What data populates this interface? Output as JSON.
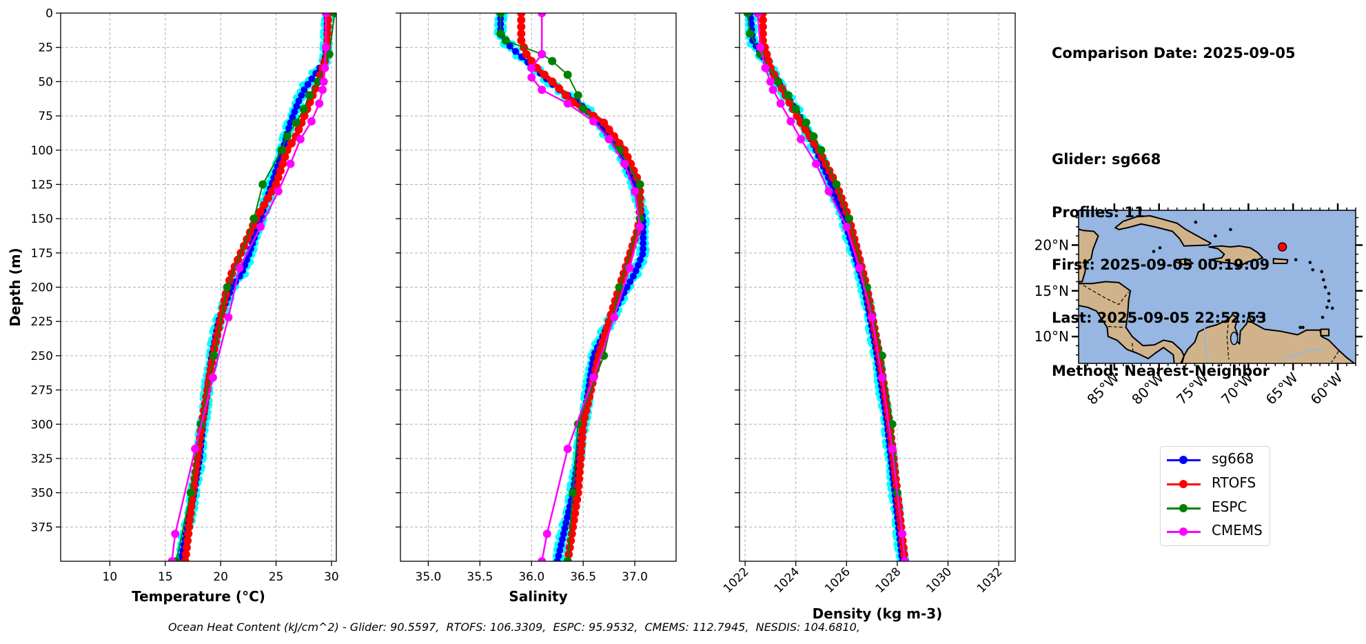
{
  "info": {
    "comparison_date": "Comparison Date: 2025-09-05",
    "glider": "Glider: sg668",
    "profiles": "Profiles: 11",
    "first": "First: 2025-09-05 00:19:09",
    "last": "Last: 2025-09-05 22:52:53",
    "method": "Method: Nearest-Neighbor"
  },
  "legend": [
    {
      "label": "sg668",
      "color": "#0000ff"
    },
    {
      "label": "RTOFS",
      "color": "#ff0000"
    },
    {
      "label": "ESPC",
      "color": "#008000"
    },
    {
      "label": "CMEMS",
      "color": "#ff00ff"
    }
  ],
  "footer": "Ocean Heat Content (kJ/cm^2) - Glider: 90.5597,  RTOFS: 106.3309,  ESPC: 95.9532,  CMEMS: 112.7945,  NESDIS: 104.6810,",
  "chart_data": [
    {
      "type": "line",
      "xlabel": "Temperature (°C)",
      "ylabel": "Depth (m)",
      "xlim": [
        5.56,
        30.44
      ],
      "ylim": [
        400,
        0
      ],
      "xticks": [
        "10",
        "15",
        "20",
        "25",
        "30"
      ],
      "yticks": [
        "0",
        "25",
        "50",
        "75",
        "100",
        "125",
        "150",
        "175",
        "200",
        "225",
        "250",
        "275",
        "300",
        "325",
        "350",
        "375"
      ],
      "grid": true,
      "xtick_rotation": 0,
      "series": [
        {
          "name": "sg668",
          "color": "#0000ff",
          "depth": [
            0,
            20,
            35,
            45,
            55,
            65,
            80,
            100,
            125,
            150,
            175,
            190,
            200,
            225,
            250,
            275,
            300,
            325,
            350,
            375,
            400
          ],
          "values": [
            29.6,
            29.6,
            29.4,
            28.5,
            27.6,
            27.0,
            26.3,
            25.6,
            24.6,
            23.6,
            22.6,
            21.9,
            21.0,
            19.8,
            19.2,
            18.8,
            18.4,
            18.1,
            17.6,
            17.0,
            16.4
          ]
        },
        {
          "name": "RTOFS",
          "color": "#ff0000",
          "depth": [
            0,
            30,
            50,
            70,
            90,
            100,
            125,
            150,
            190,
            200,
            250,
            300,
            350,
            400
          ],
          "values": [
            29.7,
            29.6,
            28.8,
            27.8,
            26.8,
            26.0,
            25.0,
            23.2,
            21.0,
            20.6,
            19.3,
            18.3,
            17.5,
            16.8
          ]
        },
        {
          "name": "ESPC",
          "color": "#008000",
          "depth": [
            0,
            30,
            50,
            60,
            70,
            80,
            90,
            100,
            125,
            150,
            200,
            250,
            300,
            350,
            400
          ],
          "values": [
            30.3,
            29.8,
            28.8,
            28.0,
            27.5,
            26.8,
            26.0,
            25.5,
            23.8,
            23.0,
            20.6,
            19.4,
            18.2,
            17.3,
            16.0
          ]
        },
        {
          "name": "CMEMS",
          "color": "#ff00ff",
          "depth": [
            0,
            25,
            40,
            50,
            56,
            66,
            79,
            92,
            110,
            130,
            156,
            186,
            222,
            266,
            318,
            380,
            400
          ],
          "values": [
            29.5,
            29.5,
            29.4,
            29.3,
            29.2,
            28.9,
            28.2,
            27.2,
            26.3,
            25.2,
            23.6,
            21.7,
            20.7,
            19.3,
            17.7,
            15.9,
            15.6
          ]
        }
      ]
    },
    {
      "type": "line",
      "xlabel": "Salinity",
      "ylabel": "",
      "xlim": [
        34.73,
        37.4
      ],
      "ylim": [
        400,
        0
      ],
      "xticks": [
        "35.0",
        "35.5",
        "36.0",
        "36.5",
        "37.0"
      ],
      "yticks": [],
      "grid": true,
      "xtick_rotation": 0,
      "series": [
        {
          "name": "sg668",
          "color": "#0000ff",
          "depth": [
            0,
            15,
            25,
            35,
            45,
            55,
            65,
            80,
            100,
            125,
            150,
            175,
            190,
            210,
            250,
            300,
            350,
            400
          ],
          "values": [
            35.7,
            35.7,
            35.8,
            35.95,
            36.1,
            36.25,
            36.45,
            36.65,
            36.85,
            37.0,
            37.08,
            37.08,
            37.0,
            36.85,
            36.6,
            36.5,
            36.4,
            36.25
          ]
        },
        {
          "name": "RTOFS",
          "color": "#ff0000",
          "depth": [
            0,
            20,
            30,
            40,
            50,
            65,
            80,
            100,
            125,
            150,
            160,
            200,
            250,
            300,
            350,
            400
          ],
          "values": [
            35.9,
            35.9,
            35.95,
            36.05,
            36.2,
            36.4,
            36.7,
            36.9,
            37.05,
            37.05,
            37.02,
            36.85,
            36.65,
            36.5,
            36.45,
            36.35
          ]
        },
        {
          "name": "ESPC",
          "color": "#008000",
          "depth": [
            0,
            15,
            20,
            30,
            35,
            45,
            60,
            70,
            100,
            125,
            150,
            200,
            250,
            300,
            350,
            400
          ],
          "values": [
            35.7,
            35.7,
            35.75,
            36.1,
            36.2,
            36.35,
            36.45,
            36.5,
            36.85,
            37.05,
            37.05,
            36.85,
            36.7,
            36.45,
            36.4,
            36.35
          ]
        },
        {
          "name": "CMEMS",
          "color": "#ff00ff",
          "depth": [
            0,
            30,
            40,
            47,
            56,
            66,
            79,
            92,
            110,
            130,
            156,
            186,
            222,
            266,
            318,
            380,
            400
          ],
          "values": [
            36.1,
            36.1,
            36.0,
            36.0,
            36.1,
            36.35,
            36.6,
            36.75,
            36.9,
            37.0,
            37.05,
            36.95,
            36.8,
            36.6,
            36.35,
            36.15,
            36.1
          ]
        }
      ]
    },
    {
      "type": "line",
      "xlabel": "Density (kg m-3)",
      "ylabel": "",
      "xlim": [
        1021.78,
        1032.65
      ],
      "ylim": [
        400,
        0
      ],
      "xticks": [
        "1022",
        "1024",
        "1026",
        "1028",
        "1030",
        "1032"
      ],
      "yticks": [],
      "grid": true,
      "xtick_rotation": -45,
      "series": [
        {
          "name": "sg668",
          "color": "#0000ff",
          "depth": [
            0,
            20,
            35,
            50,
            65,
            80,
            100,
            125,
            150,
            175,
            200,
            250,
            300,
            350,
            400
          ],
          "values": [
            1022.2,
            1022.3,
            1022.8,
            1023.3,
            1023.8,
            1024.3,
            1024.8,
            1025.4,
            1025.9,
            1026.3,
            1026.7,
            1027.2,
            1027.6,
            1027.9,
            1028.2
          ]
        },
        {
          "name": "RTOFS",
          "color": "#ff0000",
          "depth": [
            0,
            20,
            40,
            60,
            80,
            100,
            125,
            150,
            200,
            250,
            300,
            350,
            400
          ],
          "values": [
            1022.7,
            1022.7,
            1023.0,
            1023.6,
            1024.2,
            1024.9,
            1025.6,
            1026.1,
            1026.8,
            1027.3,
            1027.7,
            1028.0,
            1028.3
          ]
        },
        {
          "name": "ESPC",
          "color": "#008000",
          "depth": [
            0,
            15,
            30,
            50,
            60,
            70,
            80,
            90,
            100,
            125,
            150,
            200,
            250,
            300,
            350,
            400
          ],
          "values": [
            1022.1,
            1022.2,
            1022.6,
            1023.3,
            1023.7,
            1024.0,
            1024.4,
            1024.7,
            1025.0,
            1025.6,
            1026.1,
            1026.8,
            1027.4,
            1027.8,
            1028.0,
            1028.3
          ]
        },
        {
          "name": "CMEMS",
          "color": "#ff00ff",
          "depth": [
            0,
            25,
            40,
            50,
            56,
            66,
            79,
            92,
            110,
            130,
            156,
            186,
            222,
            266,
            318,
            380,
            400
          ],
          "values": [
            1022.5,
            1022.6,
            1022.8,
            1023.0,
            1023.1,
            1023.4,
            1023.8,
            1024.2,
            1024.8,
            1025.3,
            1026.0,
            1026.5,
            1027.0,
            1027.4,
            1027.8,
            1028.2,
            1028.3
          ]
        }
      ]
    }
  ],
  "map": {
    "lon_range": [
      -89,
      -58
    ],
    "lat_range": [
      7.07,
      23.8
    ],
    "ocean_color": "#97b6e1",
    "land_color": "#d1b38b",
    "lat_ticks": [
      {
        "value": 20,
        "label": "20°N"
      },
      {
        "value": 15,
        "label": "15°N"
      },
      {
        "value": 10,
        "label": "10°N"
      }
    ],
    "lon_ticks": [
      {
        "value": -85,
        "label": "85°W"
      },
      {
        "value": -80,
        "label": "80°W"
      },
      {
        "value": -75,
        "label": "75°W"
      },
      {
        "value": -70,
        "label": "70°W"
      },
      {
        "value": -65,
        "label": "65°W"
      },
      {
        "value": -60,
        "label": "60°W"
      }
    ],
    "glider_position": {
      "lon": -66.2,
      "lat": 19.8,
      "color": "#ff0000"
    }
  }
}
